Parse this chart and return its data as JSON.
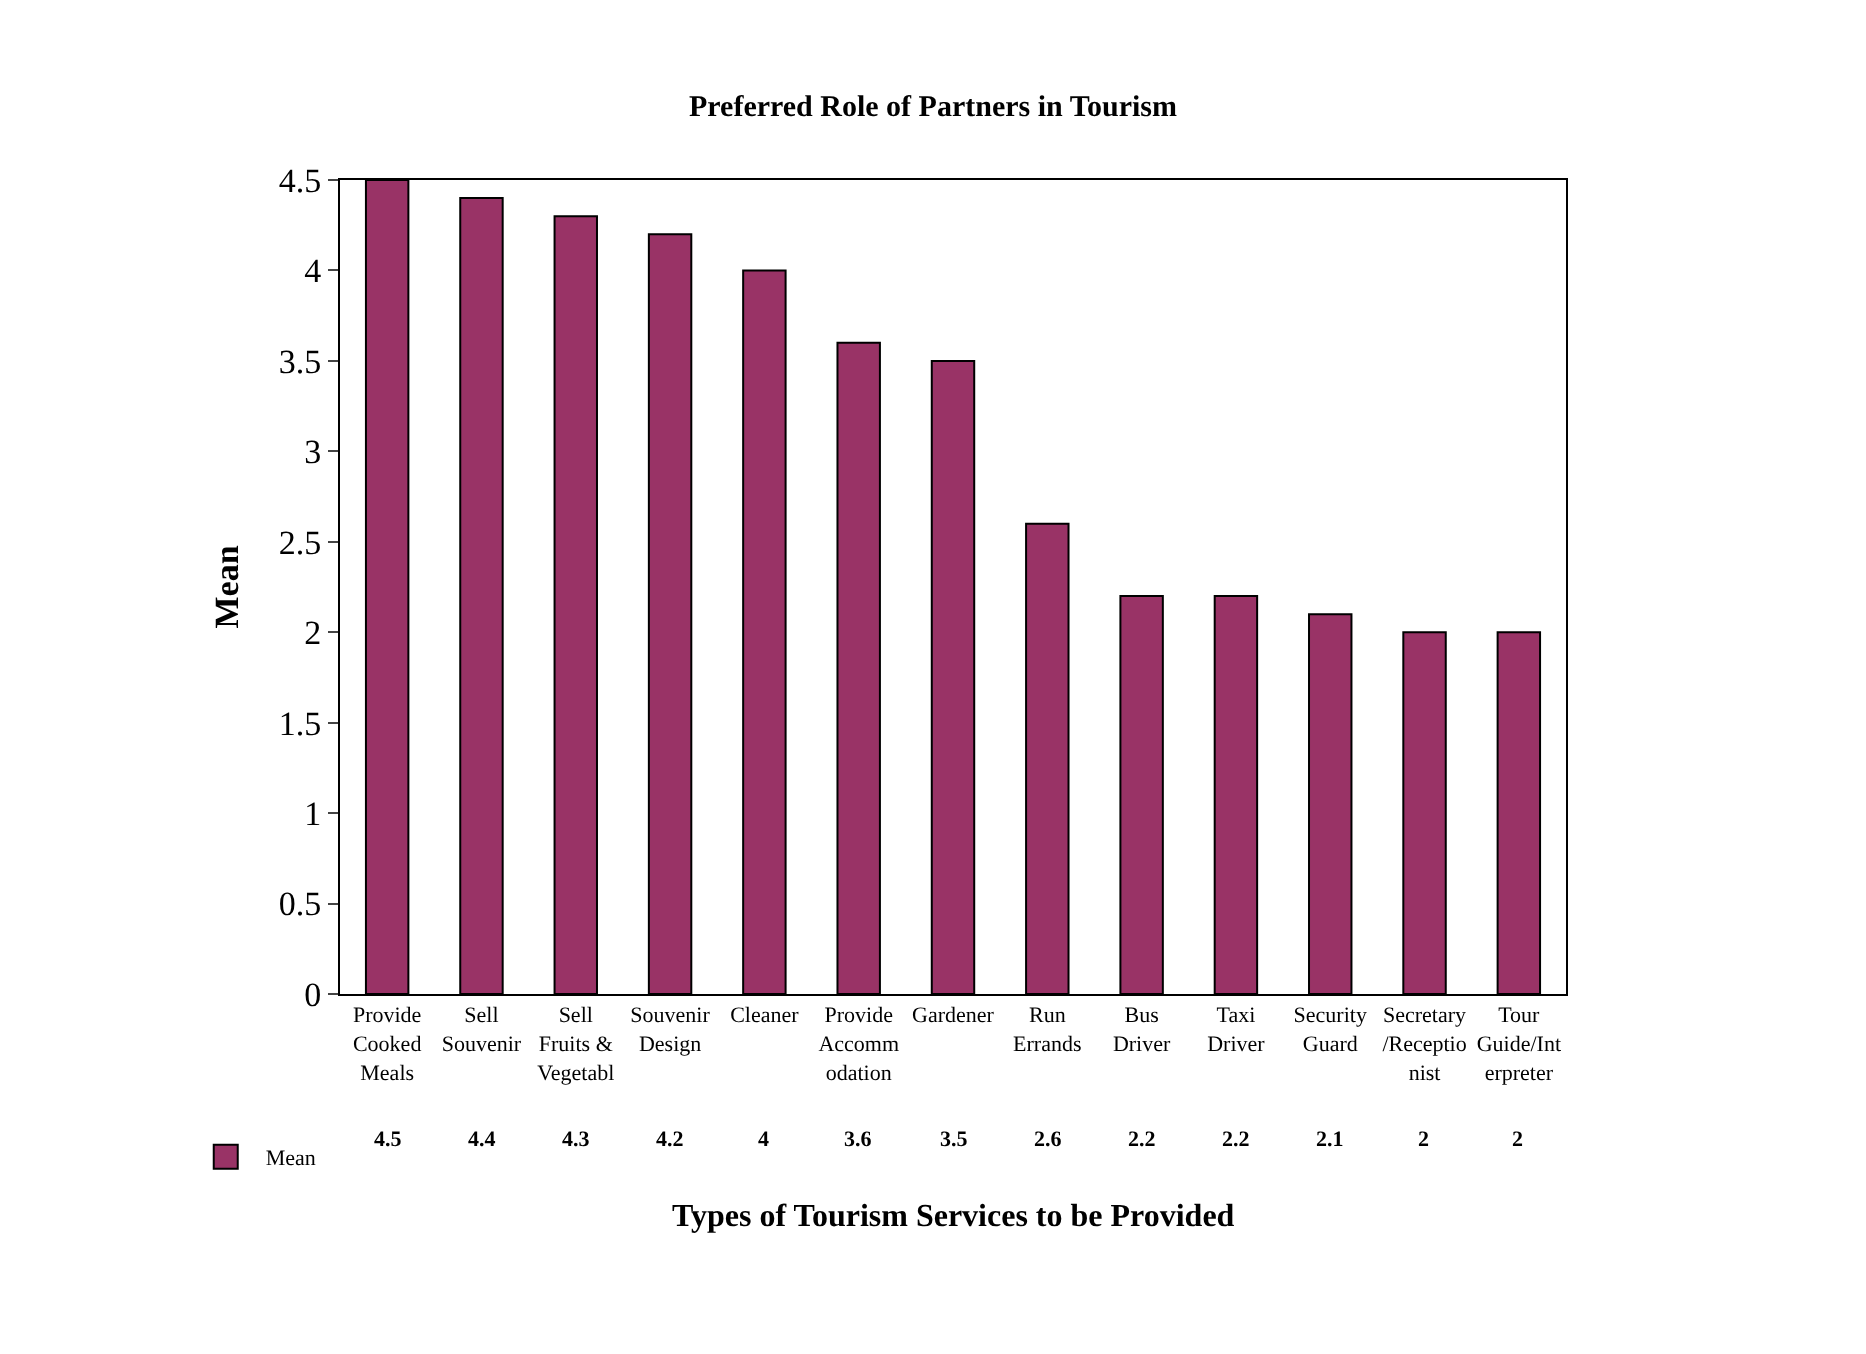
{
  "chart_data": {
    "type": "bar",
    "title": "Preferred Role of Partners in Tourism",
    "xlabel": "Types of Tourism Services to be Provided",
    "ylabel": "Mean",
    "categories": [
      "Provide\nCooked\nMeals",
      "Sell\nSouvenir",
      "Sell\nFruits &\nVegetabl",
      "Souvenir\nDesign",
      "Cleaner",
      "Provide\nAccomm\nodation",
      "Gardener",
      "Run\nErrands",
      "Bus\nDriver",
      "Taxi\nDriver",
      "Security\nGuard",
      "Secretary\n/Receptio\nnist",
      "Tour\nGuide/Int\nerpreter"
    ],
    "series": [
      {
        "name": "Mean",
        "color": "#993366",
        "values": [
          4.5,
          4.4,
          4.3,
          4.2,
          4,
          3.6,
          3.5,
          2.6,
          2.2,
          2.2,
          2.1,
          2,
          2
        ]
      }
    ],
    "ylim": [
      0,
      4.5
    ],
    "yticks": [
      0,
      0.5,
      1,
      1.5,
      2,
      2.5,
      3,
      3.5,
      4,
      4.5
    ],
    "grid": false,
    "legend": "bottom left",
    "data_labels": true
  }
}
